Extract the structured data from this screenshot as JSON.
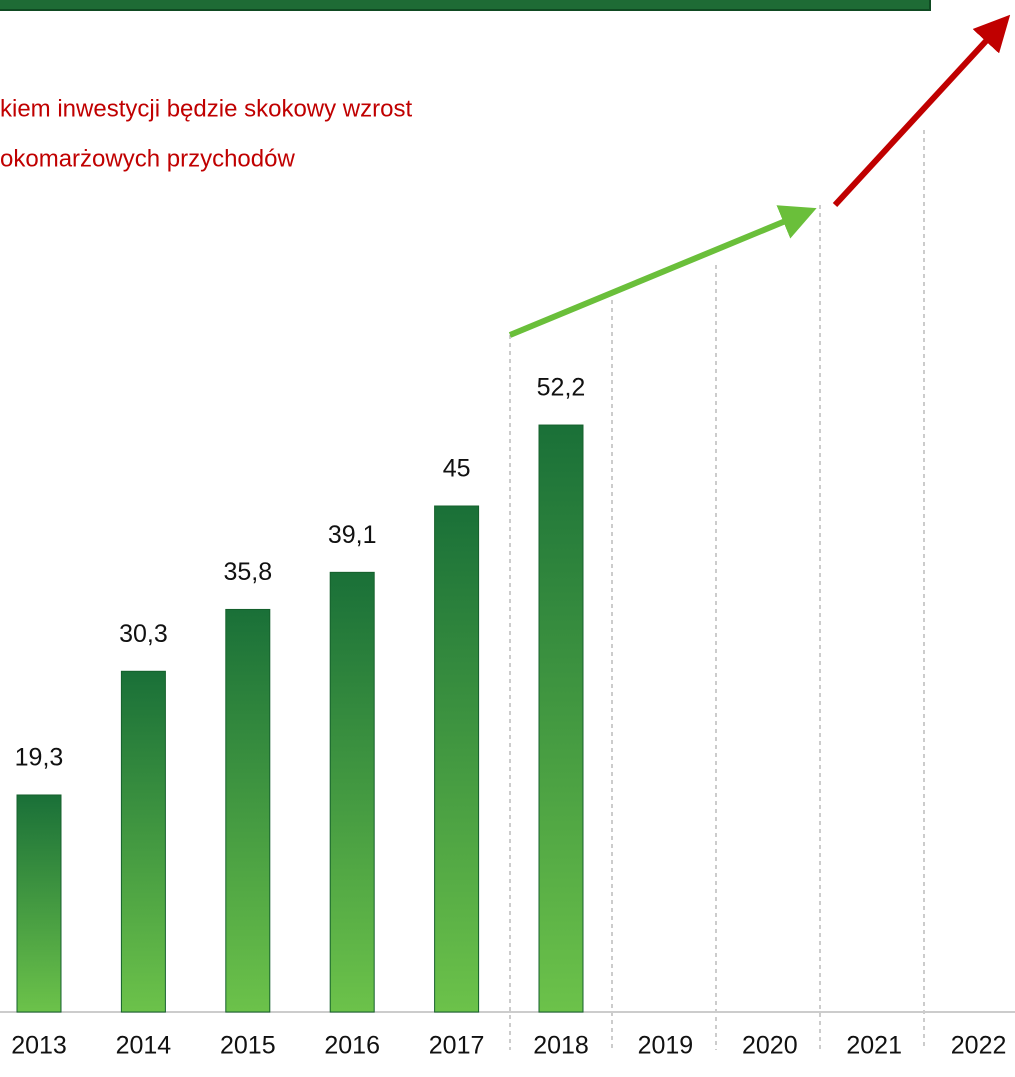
{
  "chart_data": {
    "type": "bar",
    "annotation": [
      "kiem inwestycji będzie skokowy wzrost",
      "okomarżowych przychodów"
    ],
    "categories": [
      "2013",
      "2014",
      "2015",
      "2016",
      "2017",
      "2018",
      "2019",
      "2020",
      "2021",
      "2022"
    ],
    "values": [
      19.3,
      30.3,
      35.8,
      39.1,
      45,
      52.2,
      null,
      null,
      null,
      null
    ],
    "value_labels": [
      "19,3",
      "30,3",
      "35,8",
      "39,1",
      "45",
      "52,2",
      null,
      null,
      null,
      null
    ],
    "ylim": [
      0,
      90
    ],
    "color": "#1e7d3c"
  }
}
